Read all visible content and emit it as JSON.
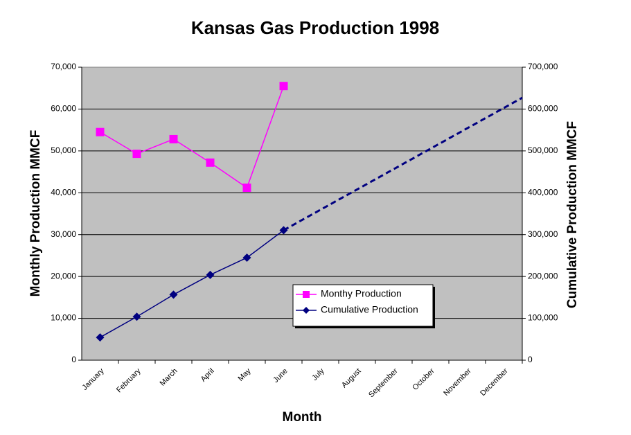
{
  "chart_data": {
    "type": "line",
    "title": "Kansas Gas Production 1998",
    "x_label": "Month",
    "y_label": "Monthly Production MMCF",
    "y2_label": "Cumulative Production MMCF",
    "categories": [
      "January",
      "February",
      "March",
      "April",
      "May",
      "June",
      "July",
      "August",
      "September",
      "October",
      "November",
      "December"
    ],
    "ylim": [
      0,
      70000
    ],
    "yticks": [
      0,
      {
        "value": 10000,
        "label": "10,000"
      },
      {
        "value": 20000,
        "label": "20,000"
      },
      {
        "value": 30000,
        "label": "30,000"
      },
      {
        "value": 40000,
        "label": "40,000"
      },
      {
        "value": 50000,
        "label": "50,000"
      },
      {
        "value": 60000,
        "label": "60,000"
      },
      {
        "value": 70000,
        "label": "70,000"
      }
    ],
    "y2lim": [
      0,
      700000
    ],
    "y2ticks": [
      0,
      {
        "value": 100000,
        "label": "100,000"
      },
      {
        "value": 200000,
        "label": "200,000"
      },
      {
        "value": 300000,
        "label": "300,000"
      },
      {
        "value": 400000,
        "label": "400,000"
      },
      {
        "value": 500000,
        "label": "500,000"
      },
      {
        "value": 600000,
        "label": "600,000"
      },
      {
        "value": 700000,
        "label": "700,000"
      }
    ],
    "grid": true,
    "legend": "inside",
    "series": [
      {
        "name": "Monthy Production",
        "color": "#ff00ff",
        "marker": "square",
        "values": [
          54500,
          49300,
          52800,
          47200,
          41200,
          65500,
          null,
          null,
          null,
          null,
          null,
          null
        ]
      },
      {
        "name": "Cumulative Production",
        "color": "#000080",
        "marker": "diamond",
        "axis": "y2",
        "values": [
          54500,
          103800,
          156600,
          203800,
          245000,
          310500,
          null,
          null,
          null,
          null,
          null,
          null
        ]
      },
      {
        "color": "#000080",
        "dashed": true,
        "axis": "y2",
        "values": [
          null,
          null,
          null,
          null,
          null,
          310500,
          359200,
          407900,
          456600,
          505300,
          554000,
          602700
        ]
      }
    ]
  }
}
